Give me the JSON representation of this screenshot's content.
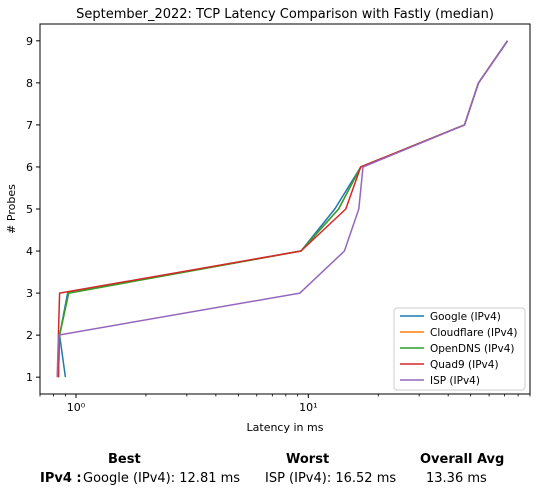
{
  "chart_data": {
    "type": "line",
    "title": "September_2022: TCP Latency Comparison with Fastly (median)",
    "xlabel": "Latency in ms",
    "ylabel": "# Probes",
    "xscale": "log",
    "xlim": [
      0.7,
      90
    ],
    "ylim": [
      0.6,
      9.4
    ],
    "xticks": [
      {
        "value": 1,
        "label": "10⁰"
      },
      {
        "value": 10,
        "label": "10¹"
      }
    ],
    "yticks": [
      1,
      2,
      3,
      4,
      5,
      6,
      7,
      8,
      9
    ],
    "legend": "lower-right",
    "grid": false,
    "series": [
      {
        "name": "Google (IPv4)",
        "color": "#1f77b4",
        "x": [
          0.9,
          0.85,
          0.92,
          9.3,
          13.0,
          16.8,
          47,
          54,
          72
        ],
        "y": [
          1,
          2,
          3,
          4,
          5,
          6,
          7,
          8,
          9
        ]
      },
      {
        "name": "Cloudflare (IPv4)",
        "color": "#ff7f0e",
        "x": [
          0.84,
          0.85,
          0.93,
          9.3,
          13.5,
          16.8,
          47,
          54,
          72
        ],
        "y": [
          1,
          2,
          3,
          4,
          5,
          6,
          7,
          8,
          9
        ]
      },
      {
        "name": "OpenDNS (IPv4)",
        "color": "#2ca02c",
        "x": [
          0.84,
          0.85,
          0.93,
          9.3,
          13.5,
          16.8,
          47,
          54,
          72
        ],
        "y": [
          1,
          2,
          3,
          4,
          5,
          6,
          7,
          8,
          9
        ]
      },
      {
        "name": "Quad9 (IPv4)",
        "color": "#d62728",
        "x": [
          0.84,
          0.84,
          0.85,
          9.3,
          14.5,
          16.8,
          47,
          54,
          72
        ],
        "y": [
          1,
          2,
          3,
          4,
          5,
          6,
          7,
          8,
          9
        ]
      },
      {
        "name": "ISP (IPv4)",
        "color": "#9467bd",
        "x": [
          0.83,
          0.84,
          9.2,
          14.3,
          16.5,
          17.2,
          47,
          54,
          72
        ],
        "y": [
          1,
          2,
          3,
          4,
          5,
          6,
          7,
          8,
          9
        ]
      }
    ]
  },
  "summary": {
    "best_header": "Best",
    "worst_header": "Worst",
    "avg_header": "Overall Avg",
    "row_label": "IPv4 :",
    "best_value": "Google (IPv4): 12.81 ms",
    "worst_value": "ISP (IPv4): 16.52 ms",
    "avg_value": "13.36 ms"
  }
}
